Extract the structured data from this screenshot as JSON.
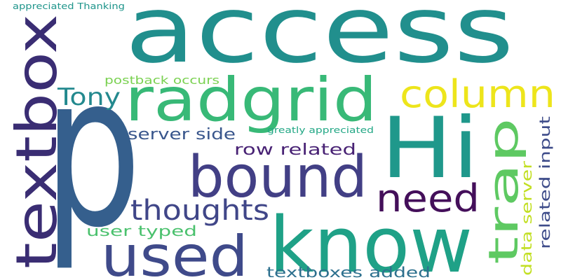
{
  "word_cloud": {
    "words": [
      {
        "id": "access",
        "text": "access",
        "color": "#218f8d"
      },
      {
        "id": "p",
        "text": "p",
        "color": "#355f8d"
      },
      {
        "id": "textbox",
        "text": "textbox",
        "color": "#3a2d73"
      },
      {
        "id": "hi",
        "text": "Hi",
        "color": "#1f988b"
      },
      {
        "id": "know",
        "text": "know",
        "color": "#1fa187"
      },
      {
        "id": "radgrid",
        "text": "radgrid",
        "color": "#38b977"
      },
      {
        "id": "bound",
        "text": "bound",
        "color": "#423f85"
      },
      {
        "id": "used",
        "text": "used",
        "color": "#3f4a8a"
      },
      {
        "id": "trap",
        "text": "trap",
        "color": "#5ec962"
      },
      {
        "id": "column",
        "text": "column",
        "color": "#ede51b"
      },
      {
        "id": "need",
        "text": "need",
        "color": "#440f5a"
      },
      {
        "id": "thoughts",
        "text": "thoughts",
        "color": "#404688"
      },
      {
        "id": "tony",
        "text": "Tony",
        "color": "#23898e"
      },
      {
        "id": "server-side",
        "text": "server side",
        "color": "#39568c"
      },
      {
        "id": "row-related",
        "text": "row related",
        "color": "#482274"
      },
      {
        "id": "user-typed",
        "text": "user typed",
        "color": "#4ac16d"
      },
      {
        "id": "textboxes-added",
        "text": "textboxes added",
        "color": "#2d708e"
      },
      {
        "id": "related-input",
        "text": "related input",
        "color": "#3e4c8a"
      },
      {
        "id": "data-server",
        "text": "data server",
        "color": "#c2df23"
      },
      {
        "id": "postback-occurs",
        "text": "postback occurs",
        "color": "#7ad151"
      },
      {
        "id": "greatly-appreciated",
        "text": "greatly appreciated",
        "color": "#22a785"
      },
      {
        "id": "appreciated-thanking",
        "text": "appreciated Thanking",
        "color": "#1f958b"
      }
    ]
  }
}
